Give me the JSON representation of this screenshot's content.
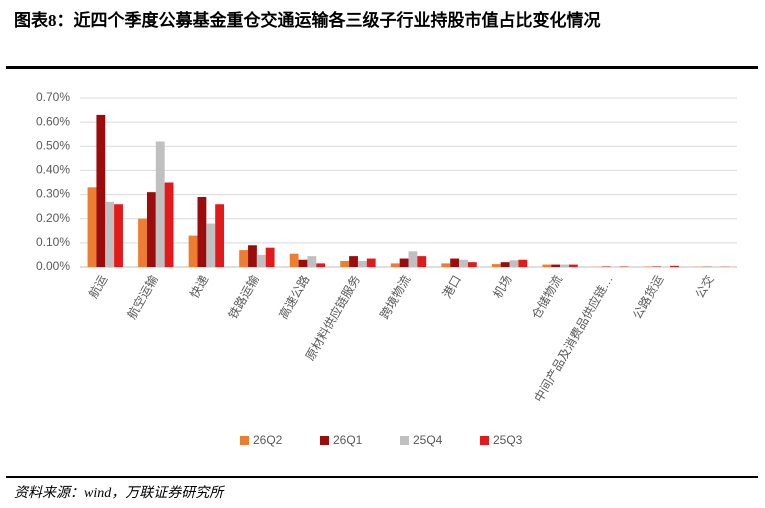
{
  "chart_data": {
    "type": "bar",
    "title": "图表8：近四个季度公募基金重仓交通运输各三级子行业持股市值占比变化情况",
    "source": "资料来源：wind，万联证券研究所",
    "categories": [
      "航运",
      "航空运输",
      "快递",
      "铁路运输",
      "高速公路",
      "原材料供应链服务",
      "跨境物流",
      "港口",
      "机场",
      "仓储物流",
      "中间产品及消费品供应链…",
      "公路货运",
      "公交"
    ],
    "series": [
      {
        "name": "26Q2",
        "color": "#ed7d31",
        "values": [
          0.33,
          0.2,
          0.13,
          0.07,
          0.055,
          0.025,
          0.015,
          0.015,
          0.012,
          0.01,
          0.001,
          0.002,
          0.001
        ]
      },
      {
        "name": "26Q1",
        "color": "#9b0d0d",
        "values": [
          0.63,
          0.31,
          0.29,
          0.09,
          0.03,
          0.045,
          0.035,
          0.035,
          0.02,
          0.01,
          0.002,
          0.002,
          0.001
        ]
      },
      {
        "name": "25Q4",
        "color": "#c0c0c0",
        "values": [
          0.27,
          0.52,
          0.18,
          0.05,
          0.045,
          0.025,
          0.065,
          0.03,
          0.028,
          0.01,
          0.002,
          0.002,
          0.001
        ]
      },
      {
        "name": "25Q3",
        "color": "#e31a1c",
        "values": [
          0.26,
          0.35,
          0.26,
          0.08,
          0.015,
          0.035,
          0.045,
          0.02,
          0.03,
          0.01,
          0.002,
          0.005,
          0.001
        ]
      }
    ],
    "ylim": [
      0,
      0.7
    ],
    "yticks": [
      {
        "value": 0,
        "label": "0.00%"
      },
      {
        "value": 0.1,
        "label": "0.10%"
      },
      {
        "value": 0.2,
        "label": "0.20%"
      },
      {
        "value": 0.3,
        "label": "0.30%"
      },
      {
        "value": 0.4,
        "label": "0.40%"
      },
      {
        "value": 0.5,
        "label": "0.50%"
      },
      {
        "value": 0.6,
        "label": "0.60%"
      },
      {
        "value": 0.7,
        "label": "0.70%"
      }
    ],
    "grid": true
  }
}
